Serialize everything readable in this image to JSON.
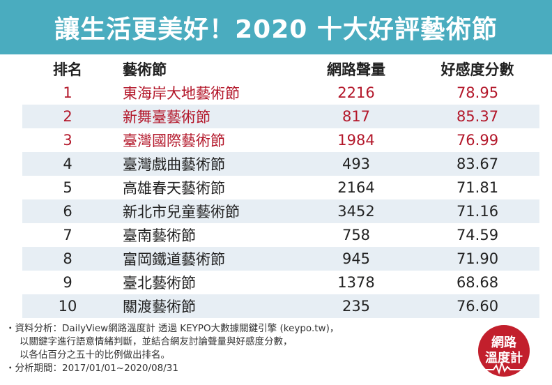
{
  "title": "讓生活更美好！2020 十大好評藝術節",
  "table": {
    "headers": [
      "排名",
      "藝術節",
      "網路聲量",
      "好感度分數"
    ],
    "rows": [
      {
        "rank": "1",
        "name": "東海岸大地藝術節",
        "volume": "2216",
        "score": "78.95",
        "highlight": true
      },
      {
        "rank": "2",
        "name": "新舞臺藝術節",
        "volume": "817",
        "score": "85.37",
        "highlight": true
      },
      {
        "rank": "3",
        "name": "臺灣國際藝術節",
        "volume": "1984",
        "score": "76.99",
        "highlight": true
      },
      {
        "rank": "4",
        "name": "臺灣戲曲藝術節",
        "volume": "493",
        "score": "83.67",
        "highlight": false
      },
      {
        "rank": "5",
        "name": "高雄春天藝術節",
        "volume": "2164",
        "score": "71.81",
        "highlight": false
      },
      {
        "rank": "6",
        "name": "新北市兒童藝術節",
        "volume": "3452",
        "score": "71.16",
        "highlight": false
      },
      {
        "rank": "7",
        "name": "臺南藝術節",
        "volume": "758",
        "score": "74.59",
        "highlight": false
      },
      {
        "rank": "8",
        "name": "富岡鐵道藝術節",
        "volume": "945",
        "score": "71.90",
        "highlight": false
      },
      {
        "rank": "9",
        "name": "臺北藝術節",
        "volume": "1378",
        "score": "68.68",
        "highlight": false
      },
      {
        "rank": "10",
        "name": "關渡藝術節",
        "volume": "235",
        "score": "76.60",
        "highlight": false
      }
    ]
  },
  "notes": {
    "line1": "・資料分析：DailyView網路溫度計 透過 KEYPO大數據關鍵引擎 (keypo.tw)，",
    "line2": "以關鍵字進行語意情緒判斷，並結合網友討論聲量與好感度分數，",
    "line3": "以各佔百分之五十的比例做出排名。",
    "line4": "・分析期間：2017/01/01~2020/08/31"
  },
  "logo": {
    "line1": "網路",
    "line2": "溫度計",
    "color": "#c21f2c"
  },
  "colors": {
    "banner": "#4aacbf",
    "highlight": "#b3172a",
    "stripe": "#e7eef4"
  }
}
